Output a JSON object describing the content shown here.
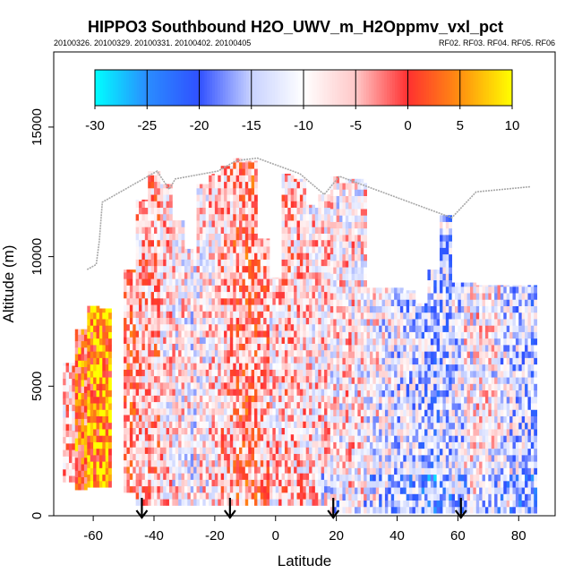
{
  "chart_data": {
    "type": "heatmap",
    "title": "HIPPO3 Southbound H2O_UWV_m_H2Oppmv_vxl_pct",
    "subtitle_left": "20100326. 20100329. 20100331. 20100402. 20100405",
    "subtitle_right": "RF02. RF03. RF04. RF05. RF06",
    "xlabel": "Latitude",
    "ylabel": "Altitude (m)",
    "xlim": [
      -73,
      92
    ],
    "ylim": [
      0,
      17900
    ],
    "xticks": [
      -60,
      -40,
      -20,
      0,
      20,
      40,
      60,
      80
    ],
    "yticks": [
      0,
      5000,
      10000,
      15000
    ],
    "colorbar": {
      "ticks": [
        -30,
        -25,
        -20,
        -15,
        -10,
        -5,
        0,
        5,
        10
      ],
      "range": [
        -30,
        10
      ],
      "colors": [
        "#00ffff",
        "#2a8cff",
        "#3050ff",
        "#c8d2ff",
        "#ffffff",
        "#ffc8c8",
        "#ff3030",
        "#ff9010",
        "#ffff00"
      ]
    },
    "arrows_latitude": [
      -44,
      -15,
      19,
      61
    ],
    "columns": [
      {
        "lat": -68,
        "bot": 1300,
        "top": 5900,
        "bias": -6
      },
      {
        "lat": -64,
        "bot": 1000,
        "top": 7200,
        "bias": 2
      },
      {
        "lat": -60,
        "bot": 1100,
        "top": 8100,
        "bias": 5
      },
      {
        "lat": -56,
        "bot": 1100,
        "top": 8000,
        "bias": 6
      },
      {
        "lat": -48,
        "bot": 900,
        "top": 9500,
        "bias": -3
      },
      {
        "lat": -44,
        "bot": 400,
        "top": 12200,
        "bias": -6
      },
      {
        "lat": -40,
        "bot": 400,
        "top": 13300,
        "bias": -5
      },
      {
        "lat": -36,
        "bot": 400,
        "top": 12800,
        "bias": -8
      },
      {
        "lat": -32,
        "bot": 400,
        "top": 11400,
        "bias": -9
      },
      {
        "lat": -28,
        "bot": 400,
        "top": 10300,
        "bias": -10
      },
      {
        "lat": -24,
        "bot": 400,
        "top": 12800,
        "bias": -9
      },
      {
        "lat": -20,
        "bot": 400,
        "top": 13200,
        "bias": -8
      },
      {
        "lat": -16,
        "bot": 400,
        "top": 13500,
        "bias": -6
      },
      {
        "lat": -12,
        "bot": 400,
        "top": 13800,
        "bias": -4
      },
      {
        "lat": -8,
        "bot": 400,
        "top": 13700,
        "bias": -3
      },
      {
        "lat": -4,
        "bot": 400,
        "top": 10700,
        "bias": -5
      },
      {
        "lat": 0,
        "bot": 400,
        "top": 9200,
        "bias": -8
      },
      {
        "lat": 4,
        "bot": 400,
        "top": 13200,
        "bias": -6
      },
      {
        "lat": 8,
        "bot": 400,
        "top": 13000,
        "bias": -7
      },
      {
        "lat": 12,
        "bot": 400,
        "top": 12000,
        "bias": -8
      },
      {
        "lat": 16,
        "bot": 400,
        "top": 12400,
        "bias": -8
      },
      {
        "lat": 20,
        "bot": 100,
        "top": 13100,
        "bias": -9
      },
      {
        "lat": 24,
        "bot": 100,
        "top": 13000,
        "bias": -8
      },
      {
        "lat": 28,
        "bot": 100,
        "top": 13000,
        "bias": -9
      },
      {
        "lat": 32,
        "bot": 100,
        "top": 8800,
        "bias": -10
      },
      {
        "lat": 36,
        "bot": 100,
        "top": 8800,
        "bias": -11
      },
      {
        "lat": 40,
        "bot": 100,
        "top": 8800,
        "bias": -12
      },
      {
        "lat": 44,
        "bot": 100,
        "top": 8700,
        "bias": -13
      },
      {
        "lat": 48,
        "bot": 100,
        "top": 8200,
        "bias": -14
      },
      {
        "lat": 52,
        "bot": 100,
        "top": 9500,
        "bias": -15
      },
      {
        "lat": 56,
        "bot": 100,
        "top": 11600,
        "bias": -14
      },
      {
        "lat": 60,
        "bot": 100,
        "top": 9000,
        "bias": -12
      },
      {
        "lat": 64,
        "bot": 100,
        "top": 9000,
        "bias": -10
      },
      {
        "lat": 68,
        "bot": 100,
        "top": 8900,
        "bias": -9
      },
      {
        "lat": 72,
        "bot": 100,
        "top": 8900,
        "bias": -10
      },
      {
        "lat": 76,
        "bot": 100,
        "top": 8900,
        "bias": -12
      },
      {
        "lat": 80,
        "bot": 100,
        "top": 8900,
        "bias": -13
      },
      {
        "lat": 84,
        "bot": 100,
        "top": 8900,
        "bias": -14
      }
    ],
    "flight_track": [
      [
        -62,
        9500
      ],
      [
        -59,
        9700
      ],
      [
        -58,
        10600
      ],
      [
        -57,
        12100
      ],
      [
        -39,
        13300
      ],
      [
        -35,
        12600
      ],
      [
        -33,
        13000
      ],
      [
        -19,
        13300
      ],
      [
        -13,
        13700
      ],
      [
        -6,
        13800
      ],
      [
        8,
        13200
      ],
      [
        16,
        12400
      ],
      [
        21,
        13100
      ],
      [
        58,
        11500
      ],
      [
        66,
        12500
      ],
      [
        84,
        12700
      ]
    ]
  }
}
